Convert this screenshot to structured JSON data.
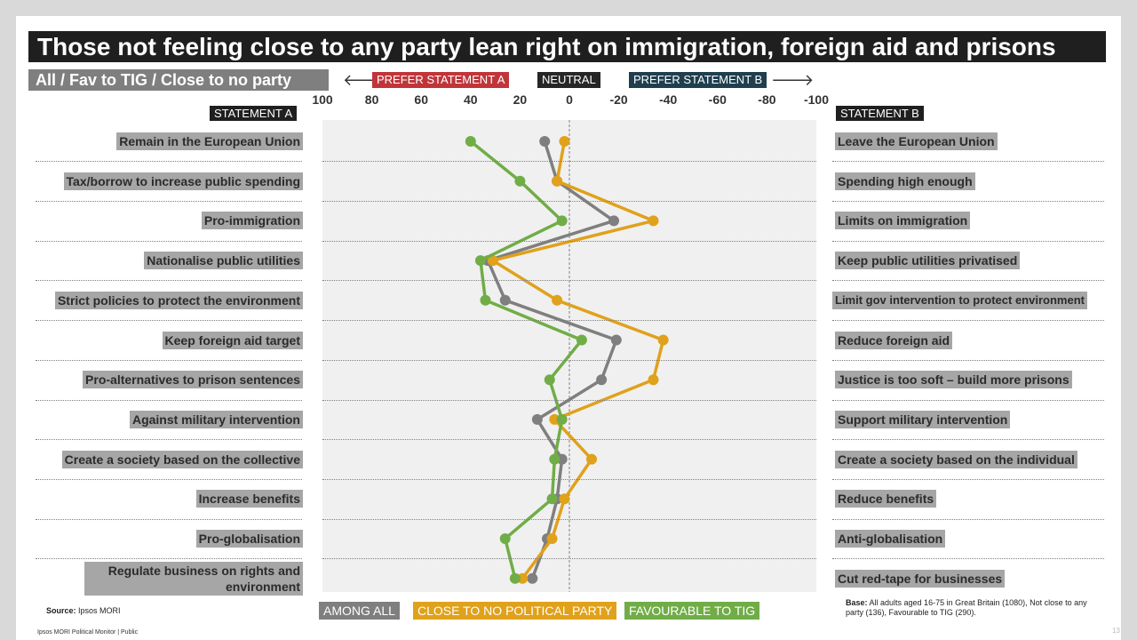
{
  "title": "Those not feeling close to any party lean right on immigration, foreign aid and prisons",
  "subtitle": "All / Fav to TIG / Close to no party",
  "header_tags": {
    "prefer_a": "PREFER STATEMENT A",
    "neutral": "NEUTRAL",
    "prefer_b": "PREFER STATEMENT B",
    "arrow_left": "🡐",
    "arrow_right": "🡒"
  },
  "column_headers": {
    "a": "STATEMENT A",
    "b": "STATEMENT B"
  },
  "colors": {
    "all": "#7f7f7f",
    "no_party": "#e0a11b",
    "tig": "#70ad47",
    "prefer_a_tag": "#c0353a",
    "neutral_tag": "#262626",
    "prefer_b_tag": "#1f3f4f",
    "plot_bg": "#f0f0f0"
  },
  "chart_data": {
    "type": "line",
    "orientation": "vertical-categories",
    "x_ticks": [
      100,
      80,
      60,
      40,
      20,
      0,
      -20,
      -40,
      -60,
      -80,
      -100
    ],
    "x_range": [
      100,
      -100
    ],
    "x_tick_labels": [
      "100",
      "80",
      "60",
      "40",
      "20",
      "0",
      "-20",
      "-40",
      "-60",
      "-80",
      "-100"
    ],
    "statement_a": [
      "Remain in the European Union",
      "Tax/borrow to increase public spending",
      "Pro-immigration",
      "Nationalise public utilities",
      "Strict policies to protect the environment",
      "Keep foreign aid target",
      "Pro-alternatives to prison sentences",
      "Against military intervention",
      "Create a society based on the collective",
      "Increase benefits",
      "Pro-globalisation",
      "Regulate business on rights and environment"
    ],
    "statement_b": [
      "Leave the European Union",
      "Spending high enough",
      "Limits on immigration",
      "Keep public utilities privatised",
      "Limit gov intervention to protect environment",
      "Reduce foreign aid",
      "Justice is too soft – build more prisons",
      "Support military intervention",
      "Create a society based on the individual",
      "Reduce benefits",
      "Anti-globalisation",
      "Cut red-tape for businesses"
    ],
    "series": [
      {
        "name": "AMONG ALL",
        "color": "#7f7f7f",
        "values": [
          10,
          5,
          -18,
          33,
          26,
          -19,
          -13,
          13,
          3,
          5,
          9,
          15
        ]
      },
      {
        "name": "CLOSE TO NO POLITICAL PARTY",
        "color": "#e0a11b",
        "values": [
          2,
          5,
          -34,
          31,
          5,
          -38,
          -34,
          6,
          -9,
          2,
          7,
          19
        ]
      },
      {
        "name": "FAVOURABLE TO TIG",
        "color": "#70ad47",
        "values": [
          40,
          20,
          3,
          36,
          34,
          -5,
          8,
          3,
          6,
          7,
          26,
          22
        ]
      }
    ]
  },
  "footer": {
    "source_label": "Source:",
    "source_value": " Ipsos MORI",
    "base_label": "Base:",
    "base_text": " All adults aged 16-75 in Great Britain (1080), Not close to any party (136), Favourable to TIG (290).",
    "footer_text": "Ipsos MORI Political Monitor | Public",
    "page_number": "13"
  }
}
